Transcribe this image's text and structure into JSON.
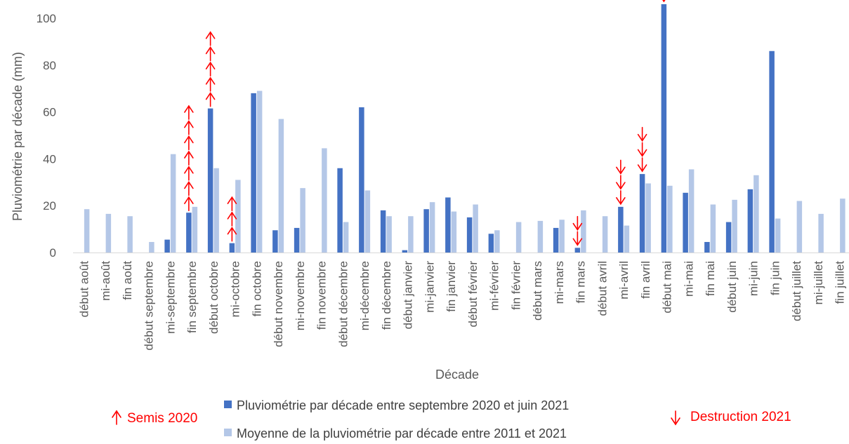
{
  "chart_data": {
    "type": "bar",
    "ylabel": "Pluviométrie par décade (mm)",
    "xlabel": "Décade",
    "ylim": [
      0,
      106
    ],
    "yticks": [
      0,
      20,
      40,
      60,
      80,
      100
    ],
    "grid": false,
    "categories": [
      "début août",
      "mi-août",
      "fin août",
      "début septembre",
      "mi-septembre",
      "fin septembre",
      "début octobre",
      "mi-octobre",
      "fin octobre",
      "début novembre",
      "mi-novembre",
      "fin novembre",
      "début décembre",
      "mi-décembre",
      "fin décembre",
      "début janvier",
      "mi-janvier",
      "fin janvier",
      "début février",
      "mi-février",
      "fin février",
      "début mars",
      "mi-mars",
      "fin mars",
      "début avril",
      "mi-avril",
      "fin avril",
      "début mai",
      "mi-mai",
      "fin mai",
      "début juin",
      "mi-juin",
      "fin juin",
      "début juillet",
      "mi-juillet",
      "fin juillet"
    ],
    "series": [
      {
        "name": "Pluviométrie par décade entre septembre 2020 et juin 2021",
        "color": "#4472c4",
        "values": [
          null,
          null,
          null,
          null,
          5.5,
          17,
          61.5,
          4,
          68,
          9.5,
          10.5,
          null,
          36,
          62,
          18,
          1,
          18.5,
          23.5,
          15,
          8,
          null,
          null,
          10.5,
          2,
          null,
          19.5,
          33.5,
          106,
          25.5,
          4.5,
          13,
          27,
          86,
          null,
          null,
          null
        ]
      },
      {
        "name": "Moyenne de la pluviométrie par décade entre 2011 et 2021",
        "color": "#b4c7e7",
        "values": [
          18.5,
          16.5,
          15.5,
          4.5,
          42,
          19.5,
          36,
          31,
          69,
          57,
          27.5,
          44.5,
          13,
          26.5,
          15.5,
          15.5,
          21.5,
          17.5,
          20.5,
          9.5,
          13,
          13.5,
          14,
          18,
          15.5,
          11.5,
          29.5,
          28.5,
          35.5,
          20.5,
          22.5,
          33,
          14.5,
          22,
          16.5,
          23
        ]
      }
    ],
    "annotations": {
      "semis": {
        "label": "Semis 2020",
        "symbol": "up-arrow",
        "color": "#ff0000",
        "counts": [
          {
            "category": "fin septembre",
            "count": 7
          },
          {
            "category": "début octobre",
            "count": 5
          },
          {
            "category": "mi-octobre",
            "count": 3
          }
        ]
      },
      "destruction": {
        "label": "Destruction 2021",
        "symbol": "down-arrow",
        "color": "#ff0000",
        "counts": [
          {
            "category": "fin mars",
            "count": 2
          },
          {
            "category": "mi-avril",
            "count": 3
          },
          {
            "category": "fin avril",
            "count": 3
          },
          {
            "category": "début mai",
            "count": 5
          }
        ]
      }
    }
  }
}
